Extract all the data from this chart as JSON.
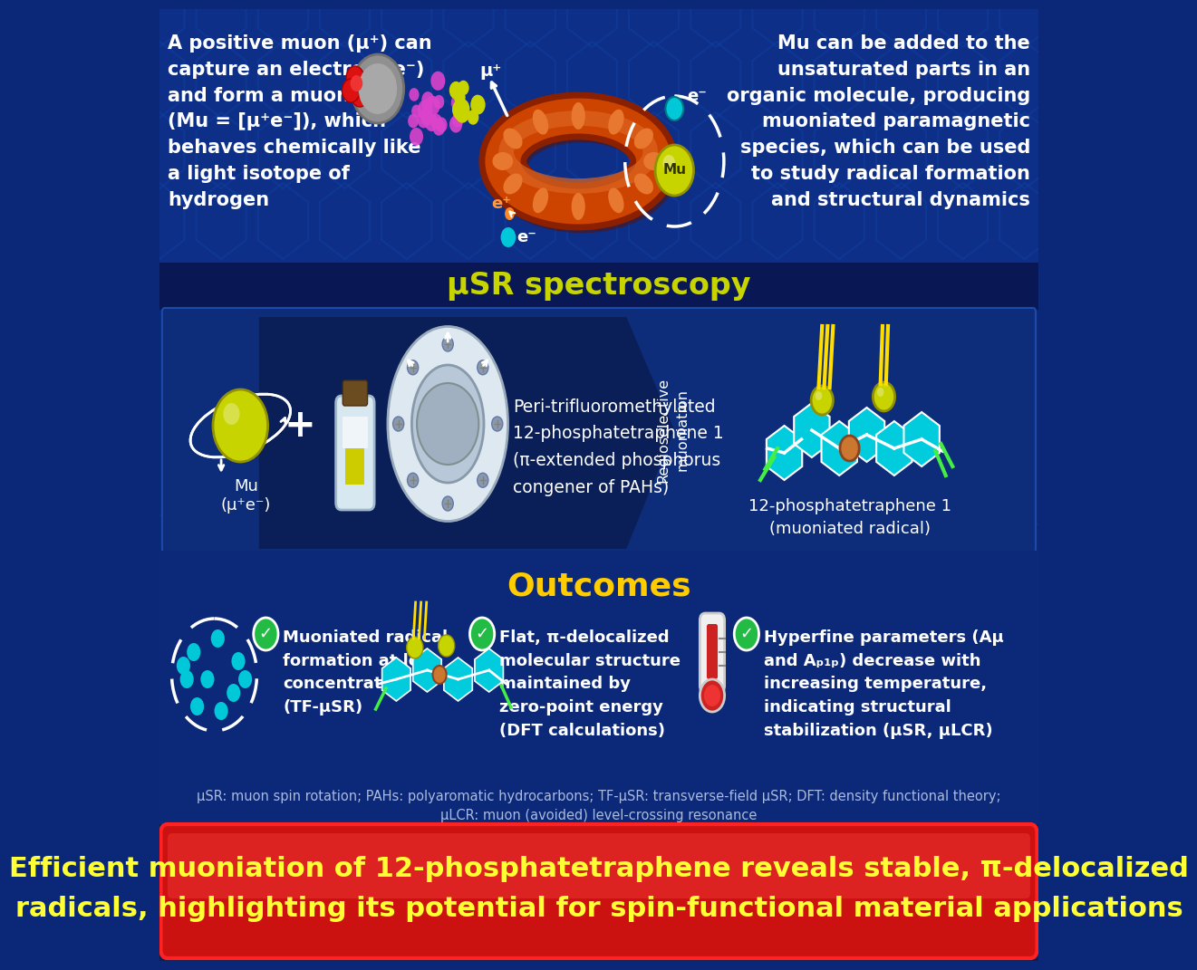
{
  "bg_dark_navy": "#0b2878",
  "bg_mid_navy": "#0d3080",
  "bg_section": "#0d2d7a",
  "uSR_bar_color": "#091a55",
  "title_uSR": "μSR spectroscopy",
  "title_outcomes": "Outcomes",
  "bottom_banner_red": "#cc1111",
  "bottom_banner_border": "#ff3333",
  "bottom_text_line1": "Efficient muoniation of 12-phosphatetraphene reveals stable, π-delocalized",
  "bottom_text_line2": "radicals, highlighting its potential for spin-functional material applications",
  "text_left_top": "A positive muon (μ⁺) can\ncapture an electron (e⁻)\nand form a muonium\n(Mu = [μ⁺e⁻]), which\nbehaves chemically like\na light isotope of\nhydrogen",
  "text_right_top": "Mu can be added to the\nunsaturated parts in an\norganic molecule, producing\nmuoniated paramagnetic\nspecies, which can be used\nto study radical formation\nand structural dynamics",
  "outcome1_title": "Muoniated radical\nformation at low\nconcentration\n(TF-μSR)",
  "outcome2_title": "Flat, π-delocalized\nmolecular structure\nmaintained by\nzero-point energy\n(DFT calculations)",
  "outcome3_title": "Hyperfine parameters (Aμ\nand Aₚ₁ₚ) decrease with\nincreasing temperature,\nindicating structural\nstabilization (μSR, μLCR)",
  "muSR_label1": "Mu\n(μ⁺e⁻)",
  "muSR_label2": "Peri-trifluoromethylated\n12-phosphatetraphene 1\n(π-extended phosphorus\ncongener of PAHs)",
  "muSR_label3": "Regioselective\nmuoniation",
  "muSR_label4": "12-phosphatetraphene 1\n(muoniated radical)",
  "footnote": "μSR: muon spin rotation; PAHs: polyaromatic hydrocarbons; TF-μSR: transverse-field μSR; DFT: density functional theory;\nμLCR: muon (avoided) level-crossing resonance",
  "yellow_green": "#c8d400",
  "cyan_blue": "#00c8d8",
  "orange": "#e87830",
  "green_check": "#22bb44",
  "white": "#ffffff"
}
